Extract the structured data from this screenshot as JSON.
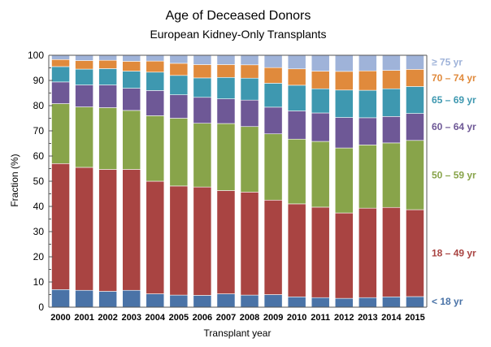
{
  "chart_data": {
    "type": "bar",
    "stacked": true,
    "title": "Age of Deceased Donors",
    "subtitle": "European Kidney-Only Transplants",
    "xlabel": "Transplant year",
    "ylabel": "Fraction (%)",
    "ylim": [
      0,
      100
    ],
    "yticks": [
      0,
      10,
      20,
      30,
      40,
      50,
      60,
      70,
      80,
      90,
      100
    ],
    "grid": false,
    "legend_placement": "right",
    "categories": [
      "2000",
      "2001",
      "2002",
      "2003",
      "2004",
      "2005",
      "2006",
      "2007",
      "2008",
      "2009",
      "2010",
      "2011",
      "2012",
      "2013",
      "2014",
      "2015"
    ],
    "series": [
      {
        "name": "< 18 yr",
        "color": "#4a73a7",
        "values": [
          7.0,
          6.7,
          6.3,
          6.7,
          5.3,
          4.8,
          4.7,
          5.3,
          4.8,
          5.0,
          4.1,
          3.8,
          3.5,
          3.8,
          4.1,
          4.2
        ]
      },
      {
        "name": "18 – 49 yr",
        "color": "#a94442",
        "values": [
          50.0,
          48.8,
          48.4,
          48.0,
          44.7,
          43.3,
          43.0,
          41.0,
          40.9,
          37.5,
          36.9,
          35.9,
          33.9,
          35.5,
          35.5,
          34.5
        ]
      },
      {
        "name": "50 – 59 yr",
        "color": "#88a44a",
        "values": [
          23.8,
          24.0,
          24.5,
          23.4,
          26.0,
          26.9,
          25.3,
          26.6,
          26.0,
          26.3,
          25.7,
          26.1,
          25.8,
          25.1,
          25.6,
          27.5
        ]
      },
      {
        "name": "60 – 64 yr",
        "color": "#6e5896",
        "values": [
          8.6,
          8.7,
          9.0,
          8.8,
          10.0,
          9.3,
          10.3,
          9.8,
          10.5,
          10.6,
          11.2,
          11.3,
          12.1,
          10.8,
          10.5,
          10.7
        ]
      },
      {
        "name": "65 – 69 yr",
        "color": "#3e98b0",
        "values": [
          6.1,
          6.3,
          6.5,
          6.8,
          7.3,
          7.7,
          7.7,
          8.5,
          8.7,
          9.5,
          10.2,
          9.6,
          10.9,
          10.9,
          11.0,
          10.7
        ]
      },
      {
        "name": "70 – 74 yr",
        "color": "#e08a3c",
        "values": [
          2.8,
          3.4,
          3.3,
          3.9,
          4.4,
          4.8,
          5.3,
          5.1,
          5.3,
          6.2,
          6.5,
          7.0,
          7.4,
          7.7,
          7.3,
          6.8
        ]
      },
      {
        "name": "≥ 75 yr",
        "color": "#9fb3d9",
        "values": [
          1.7,
          2.1,
          2.0,
          2.4,
          2.3,
          3.2,
          3.7,
          3.7,
          3.8,
          4.9,
          5.4,
          6.3,
          6.4,
          6.2,
          6.0,
          5.6
        ]
      }
    ]
  }
}
